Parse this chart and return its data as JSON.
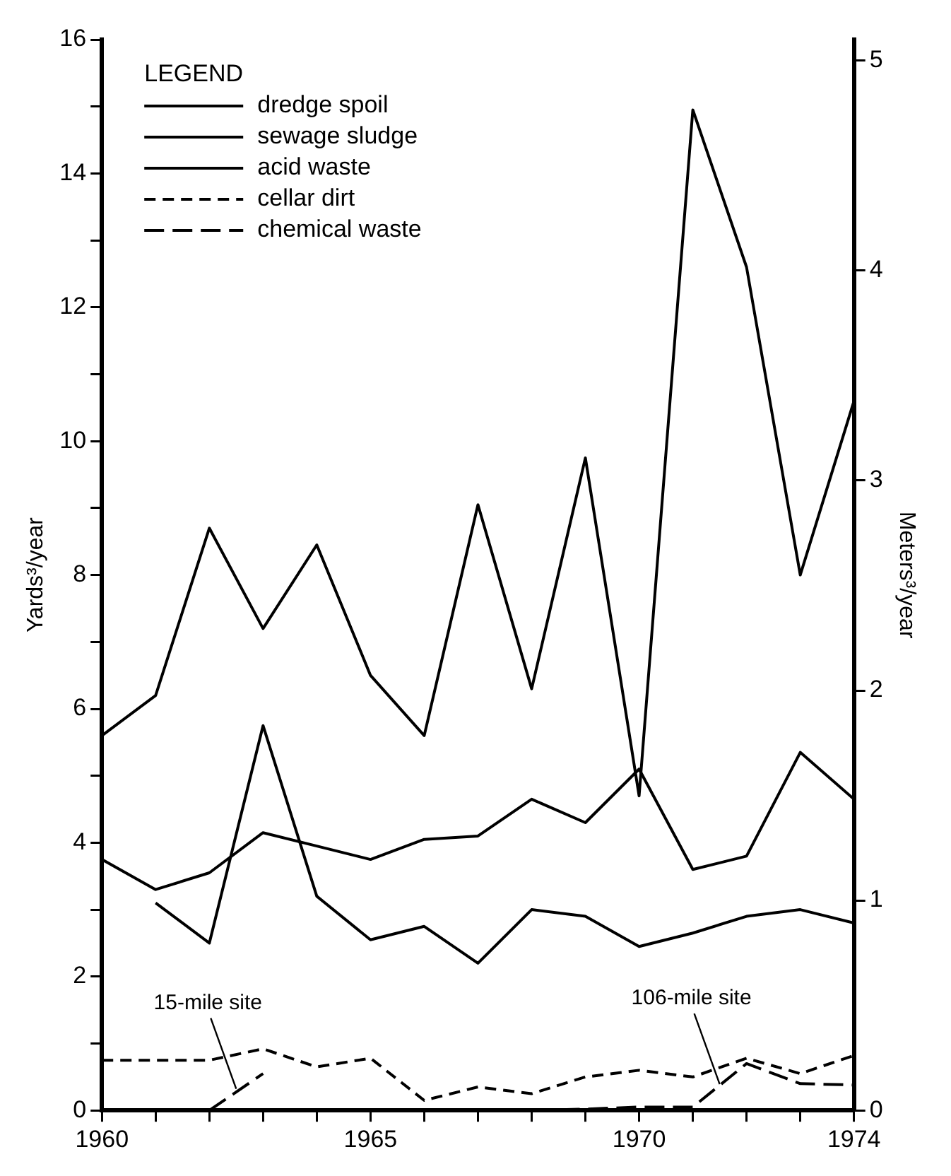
{
  "chart_data": {
    "type": "line",
    "legend_title": "LEGEND",
    "ylabel": "Yards³/year",
    "y2label": "Meters³/year",
    "x": [
      1960,
      1961,
      1962,
      1963,
      1964,
      1965,
      1966,
      1967,
      1968,
      1969,
      1970,
      1971,
      1972,
      1973,
      1974
    ],
    "xlim": [
      1960,
      1974
    ],
    "xticks": [
      1960,
      {
        "value": 1961,
        "label": null
      },
      {
        "value": 1962,
        "label": null
      },
      {
        "value": 1963,
        "label": null
      },
      {
        "value": 1964,
        "label": null
      },
      1965,
      {
        "value": 1966,
        "label": null
      },
      {
        "value": 1967,
        "label": null
      },
      {
        "value": 1968,
        "label": null
      },
      {
        "value": 1969,
        "label": null
      },
      1970,
      {
        "value": 1971,
        "label": null
      },
      {
        "value": 1972,
        "label": null
      },
      {
        "value": 1973,
        "label": null
      },
      1974
    ],
    "ylim": [
      0,
      16
    ],
    "yticks": [
      0,
      {
        "value": 1,
        "label": null
      },
      2,
      {
        "value": 3,
        "label": null
      },
      4,
      {
        "value": 5,
        "label": null
      },
      6,
      {
        "value": 7,
        "label": null
      },
      8,
      {
        "value": 9,
        "label": null
      },
      10,
      {
        "value": 11,
        "label": null
      },
      12,
      {
        "value": 13,
        "label": null
      },
      14,
      {
        "value": 15,
        "label": null
      },
      16
    ],
    "y2lim": [
      0,
      5.1
    ],
    "y2ticks": [
      0,
      1,
      2,
      3,
      4,
      5
    ],
    "series": [
      {
        "name": "dredge spoil",
        "color": "#000000",
        "line_style": "solid",
        "values": [
          5.6,
          6.2,
          8.7,
          7.2,
          8.45,
          6.5,
          5.6,
          9.05,
          6.3,
          9.75,
          4.7,
          14.95,
          12.6,
          8.0,
          10.6
        ]
      },
      {
        "name": "sewage sludge",
        "color": "#000000",
        "line_style": "solid",
        "values": [
          3.75,
          3.3,
          3.55,
          4.15,
          3.95,
          3.75,
          4.05,
          4.1,
          4.65,
          4.3,
          5.1,
          3.6,
          3.8,
          5.35,
          4.65
        ]
      },
      {
        "name": "acid waste",
        "color": "#000000",
        "line_style": "solid",
        "values": [
          null,
          3.1,
          2.5,
          5.75,
          3.2,
          2.55,
          2.75,
          2.2,
          3.0,
          2.9,
          2.45,
          2.65,
          2.9,
          3.0,
          2.8
        ]
      },
      {
        "name": "cellar dirt",
        "color": "#000000",
        "line_style": "dashed",
        "values": [
          0.75,
          0.75,
          0.75,
          0.92,
          0.65,
          0.78,
          0.15,
          0.35,
          0.25,
          0.5,
          0.6,
          0.5,
          0.78,
          0.55,
          0.82
        ]
      },
      {
        "name": "chemical waste",
        "color": "#000000",
        "line_style": "dashed",
        "values": [
          null,
          null,
          0,
          0.55,
          null,
          null,
          null,
          null,
          0,
          0.02,
          0.05,
          0.05,
          0.7,
          0.4,
          0.38
        ]
      }
    ],
    "annotations": [
      {
        "text": "15-mile site",
        "x": 1962.5,
        "y": 0.28
      },
      {
        "text": "106-mile site",
        "x": 1971.5,
        "y": 0.35
      }
    ],
    "legend": "top left",
    "marker": "none"
  }
}
